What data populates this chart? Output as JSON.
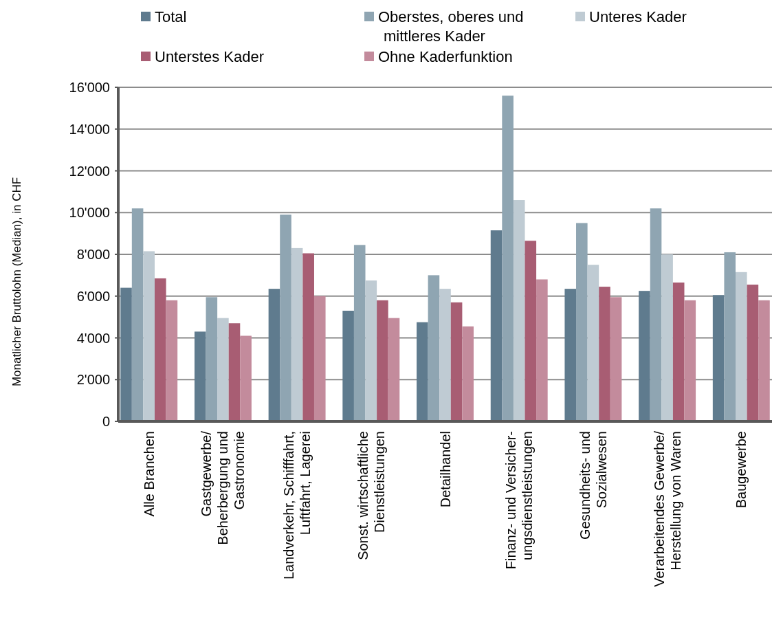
{
  "chart_data": {
    "type": "bar",
    "ylabel": "Monatlicher Bruttolohn (Median), in CHF",
    "categories": [
      "Alle Branchen",
      "Gastgewerbe/\nBeherbergung und\nGastronomie",
      "Landverkehr, Schifffahrt,\nLuftfahrt, Lagerei",
      "Sonst. wirtschaftliche\nDienstleistungen",
      "Detailhandel",
      "Finanz- und Versicher-\nungsdienstleistungen",
      "Gesundheits- und\nSozialwesen",
      "Verarbeitendes Gewerbe/\nHerstellung von Waren",
      "Baugewerbe"
    ],
    "series": [
      {
        "name": "Total",
        "color": "#5f7b8e",
        "values": [
          6400,
          4300,
          6350,
          5300,
          4750,
          9150,
          6350,
          6250,
          6050
        ]
      },
      {
        "name": "Oberstes, oberes und\nmittleres Kader",
        "color": "#8fa5b2",
        "values": [
          10200,
          5950,
          9900,
          8450,
          7000,
          15600,
          9500,
          10200,
          8100
        ]
      },
      {
        "name": "Unteres Kader",
        "color": "#bfcbd3",
        "values": [
          8150,
          4950,
          8300,
          6750,
          6350,
          10600,
          7500,
          8000,
          7150
        ]
      },
      {
        "name": "Unterstes Kader",
        "color": "#a85d73",
        "values": [
          6850,
          4700,
          8050,
          5800,
          5700,
          8650,
          6450,
          6650,
          6550
        ]
      },
      {
        "name": "Ohne Kaderfunktion",
        "color": "#c38b9c",
        "values": [
          5800,
          4100,
          6000,
          4950,
          4550,
          6800,
          5950,
          5800,
          5800
        ]
      }
    ],
    "ylim": [
      0,
      16000
    ],
    "yticks": [
      {
        "value": 0,
        "label": "0"
      },
      {
        "value": 2000,
        "label": "2'000"
      },
      {
        "value": 4000,
        "label": "4'000"
      },
      {
        "value": 6000,
        "label": "6'000"
      },
      {
        "value": 8000,
        "label": "8'000"
      },
      {
        "value": 10000,
        "label": "10'000"
      },
      {
        "value": 12000,
        "label": "12'000"
      },
      {
        "value": 14000,
        "label": "14'000"
      },
      {
        "value": 16000,
        "label": "16'000"
      }
    ],
    "grid": "y",
    "legend": "top"
  }
}
